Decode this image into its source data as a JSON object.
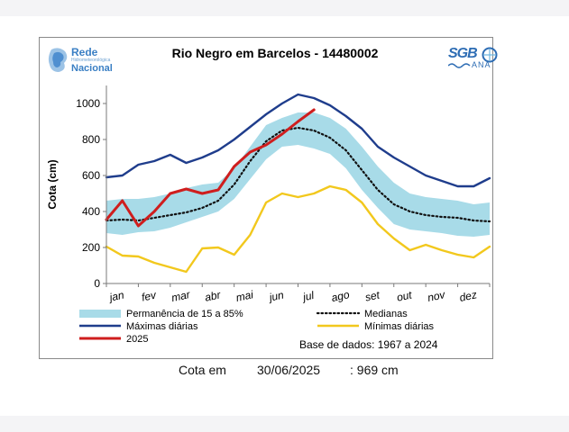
{
  "chart_data": {
    "type": "line",
    "title": "Rio Negro em Barcelos - 14480002",
    "ylabel": "Cota (cm)",
    "xlabel": "",
    "ylim": [
      0,
      1100
    ],
    "yticks": [
      0,
      200,
      400,
      600,
      800,
      1000
    ],
    "months": [
      "jan",
      "fev",
      "mar",
      "abr",
      "mai",
      "jun",
      "jul",
      "ago",
      "set",
      "out",
      "nov",
      "dez"
    ],
    "x": [
      0,
      0.5,
      1,
      1.5,
      2,
      2.5,
      3,
      3.5,
      4,
      4.5,
      5,
      5.5,
      6,
      6.5,
      7,
      7.5,
      8,
      8.5,
      9,
      9.5,
      10,
      10.5,
      11,
      11.5,
      12
    ],
    "band": {
      "name": "Permanência de 15 a 85%",
      "color": "#a8dbe8",
      "low": [
        280,
        270,
        285,
        290,
        310,
        340,
        370,
        400,
        470,
        580,
        690,
        760,
        770,
        750,
        720,
        640,
        520,
        420,
        330,
        300,
        290,
        280,
        265,
        260,
        270
      ],
      "high": [
        460,
        470,
        470,
        480,
        500,
        530,
        550,
        560,
        640,
        760,
        880,
        920,
        950,
        950,
        920,
        860,
        760,
        650,
        560,
        500,
        480,
        470,
        460,
        440,
        450
      ]
    },
    "series": [
      {
        "name": "Medianas",
        "style": "dotted",
        "color": "#111111",
        "values": [
          350,
          355,
          350,
          365,
          380,
          395,
          420,
          460,
          550,
          680,
          790,
          850,
          865,
          850,
          810,
          740,
          630,
          520,
          440,
          400,
          380,
          370,
          365,
          350,
          345
        ]
      },
      {
        "name": "Máximas diárias",
        "style": "solid",
        "color": "#1f3d8c",
        "values": [
          590,
          600,
          660,
          680,
          715,
          670,
          700,
          740,
          800,
          870,
          940,
          1000,
          1050,
          1030,
          990,
          930,
          860,
          760,
          700,
          650,
          600,
          570,
          540,
          540,
          585
        ]
      },
      {
        "name": "Mínimas diárias",
        "style": "solid",
        "color": "#f2c81d",
        "values": [
          205,
          155,
          150,
          115,
          90,
          65,
          195,
          200,
          160,
          270,
          450,
          500,
          480,
          500,
          540,
          520,
          450,
          330,
          250,
          185,
          215,
          185,
          160,
          145,
          205
        ]
      },
      {
        "name": "2025",
        "style": "solid",
        "color": "#cf1e1e",
        "values": [
          355,
          460,
          320,
          400,
          500,
          525,
          500,
          520,
          650,
          730,
          770,
          830,
          900,
          965
        ],
        "x": [
          0,
          0.5,
          1,
          1.5,
          2,
          2.5,
          3,
          3.5,
          4,
          4.5,
          5,
          5.5,
          6,
          6.5
        ]
      }
    ],
    "legend": {
      "placement": "bottom",
      "base_dados": "Base de dados: 1967 a 2024"
    }
  },
  "logos": {
    "left_name1": "Rede",
    "left_sub": "Hidrometeorológica",
    "left_name2": "Nacional",
    "right_name": "SGB",
    "right_sub": "ANA"
  },
  "footer": {
    "label": "Cota em",
    "date": "30/06/2025",
    "value": ": 969 cm"
  }
}
